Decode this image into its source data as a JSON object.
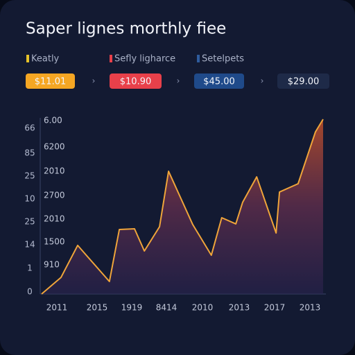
{
  "header": {
    "title": "Saper lignes morthly fiee"
  },
  "legend": [
    {
      "label": "Keatly",
      "color": "#e6c229"
    },
    {
      "label": "Sefly ligharce",
      "color": "#e8404a"
    },
    {
      "label": "Setelpets",
      "color": "#2f5c9e"
    }
  ],
  "pills": [
    {
      "label": "$11.01",
      "color": "#f5a623"
    },
    {
      "label": "$10.90",
      "color": "#e8404a"
    },
    {
      "label": "$45.00",
      "color": "#1f4a8a"
    },
    {
      "label": "$29.00",
      "color": "#1e2a48"
    }
  ],
  "chart_data": {
    "type": "area",
    "color": "#f0a53a",
    "x": [
      0,
      6.9,
      12.8,
      24.1,
      27.6,
      33.0,
      36.5,
      41.9,
      45.1,
      53.7,
      60.3,
      64.0,
      69.0,
      71.4,
      76.4,
      83.3,
      84.5,
      91.1,
      97.3,
      100
    ],
    "values": [
      0,
      9.4,
      27.6,
      7.1,
      36.6,
      37.0,
      24.4,
      38.2,
      69.7,
      39.4,
      22.0,
      43.3,
      39.8,
      52.0,
      66.5,
      34.6,
      57.9,
      62.6,
      92.1,
      99.2
    ],
    "xlim": [
      0,
      100
    ],
    "ylim": [
      0,
      100
    ],
    "x_axis_labels": [
      "2011",
      "2015",
      "1919",
      "8414",
      "2010",
      "2013",
      "2017",
      "2013"
    ],
    "y_axis_labels_outer": [
      "66",
      "85",
      "25",
      "10",
      "25",
      "14",
      "1",
      "0"
    ],
    "y_axis_labels_inner": [
      "6.00",
      "6200",
      "2010",
      "2700",
      "2010",
      "1500",
      "910"
    ]
  }
}
